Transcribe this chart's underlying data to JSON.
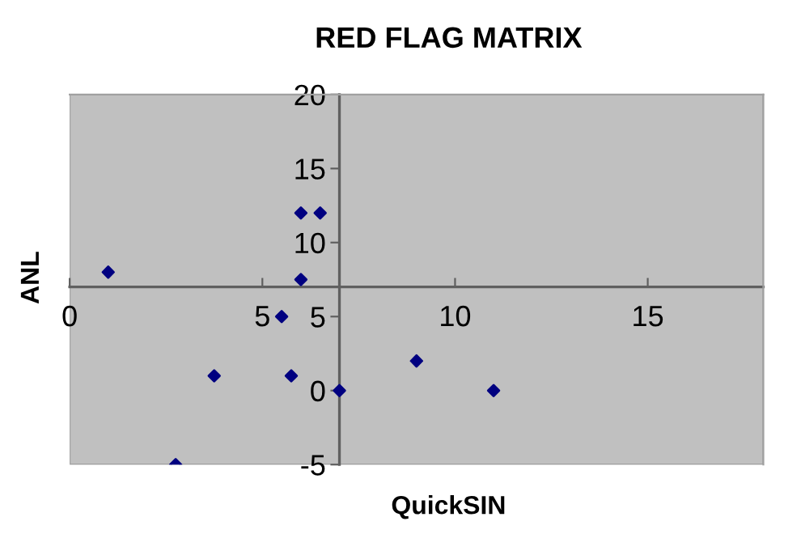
{
  "chart_data": {
    "type": "scatter",
    "title": "RED FLAG MATRIX",
    "xlabel": "QuickSIN",
    "ylabel": "ANL",
    "x": [
      1,
      2.75,
      3.75,
      5.5,
      5.75,
      6,
      6.5,
      6,
      7,
      9,
      11
    ],
    "series": [
      {
        "color": "#000080",
        "values": [
          8,
          -5,
          1,
          5,
          1,
          12,
          12,
          7.5,
          0,
          2,
          0
        ]
      }
    ],
    "marker": "diamond",
    "grid": false,
    "legend": false,
    "xlim": [
      0,
      18
    ],
    "xticks": [
      0,
      5,
      10,
      15
    ],
    "ylim": [
      -5,
      20
    ],
    "yticks": [
      -5,
      0,
      5,
      10,
      15,
      20
    ]
  }
}
